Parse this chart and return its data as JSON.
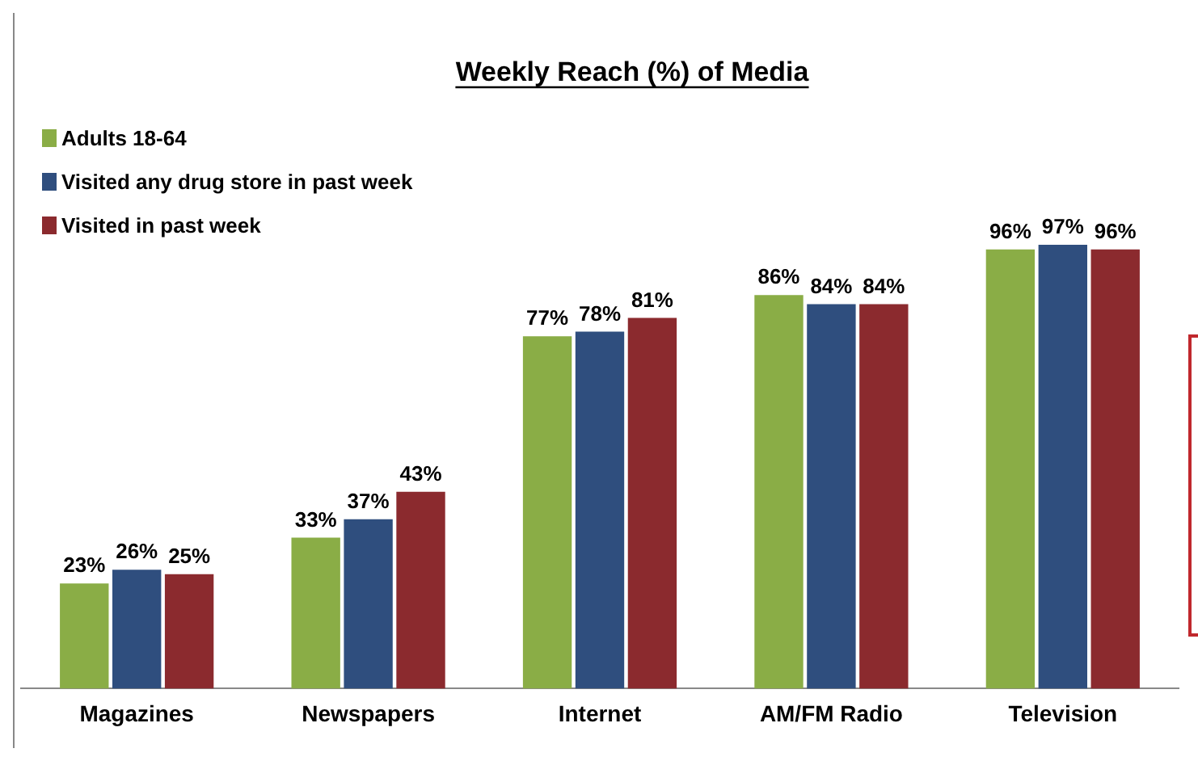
{
  "chart_data": {
    "type": "bar",
    "title": "Weekly Reach (%) of Media",
    "categories": [
      "Magazines",
      "Newspapers",
      "Internet",
      "AM/FM Radio",
      "Television"
    ],
    "series": [
      {
        "name": "Adults 18-64",
        "color": "#8aad46",
        "values": [
          23,
          33,
          77,
          86,
          96
        ],
        "value_labels": [
          "23%",
          "33%",
          "77%",
          "86%",
          "96%"
        ]
      },
      {
        "name": "Visited any drug store in past week",
        "color": "#2f4e7e",
        "values": [
          26,
          37,
          78,
          84,
          97
        ],
        "value_labels": [
          "26%",
          "37%",
          "78%",
          "84%",
          "97%"
        ]
      },
      {
        "name": "Visited in past week",
        "color": "#8b2a2e",
        "values": [
          25,
          43,
          81,
          84,
          96
        ],
        "value_labels": [
          "25%",
          "43%",
          "81%",
          "84%",
          "96%"
        ]
      }
    ],
    "legend": "top left",
    "grid": false
  }
}
